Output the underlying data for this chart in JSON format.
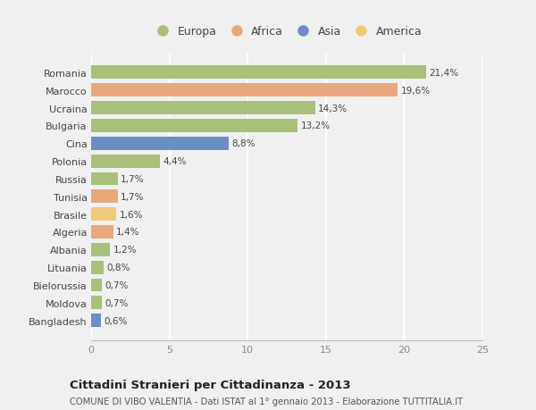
{
  "countries": [
    "Romania",
    "Marocco",
    "Ucraina",
    "Bulgaria",
    "Cina",
    "Polonia",
    "Russia",
    "Tunisia",
    "Brasile",
    "Algeria",
    "Albania",
    "Lituania",
    "Bielorussia",
    "Moldova",
    "Bangladesh"
  ],
  "values": [
    21.4,
    19.6,
    14.3,
    13.2,
    8.8,
    4.4,
    1.7,
    1.7,
    1.6,
    1.4,
    1.2,
    0.8,
    0.7,
    0.7,
    0.6
  ],
  "labels": [
    "21,4%",
    "19,6%",
    "14,3%",
    "13,2%",
    "8,8%",
    "4,4%",
    "1,7%",
    "1,7%",
    "1,6%",
    "1,4%",
    "1,2%",
    "0,8%",
    "0,7%",
    "0,7%",
    "0,6%"
  ],
  "colors": [
    "#a8c07a",
    "#e8a87c",
    "#a8c07a",
    "#a8c07a",
    "#6b8fc2",
    "#a8c07a",
    "#a8c07a",
    "#e8a87c",
    "#f0c97a",
    "#e8a87c",
    "#a8c07a",
    "#a8c07a",
    "#a8c07a",
    "#a8c07a",
    "#6b8fc2"
  ],
  "legend_labels": [
    "Europa",
    "Africa",
    "Asia",
    "America"
  ],
  "legend_colors": [
    "#a8c07a",
    "#e8a87c",
    "#6b8fc2",
    "#f0c97a"
  ],
  "title": "Cittadini Stranieri per Cittadinanza - 2013",
  "subtitle": "COMUNE DI VIBO VALENTIA - Dati ISTAT al 1° gennaio 2013 - Elaborazione TUTTITALIA.IT",
  "xlim": [
    0,
    25
  ],
  "xticks": [
    0,
    5,
    10,
    15,
    20,
    25
  ],
  "background_color": "#f0f0f0",
  "plot_bg_color": "#f0f0f0",
  "grid_color": "#ffffff",
  "bar_height": 0.75
}
